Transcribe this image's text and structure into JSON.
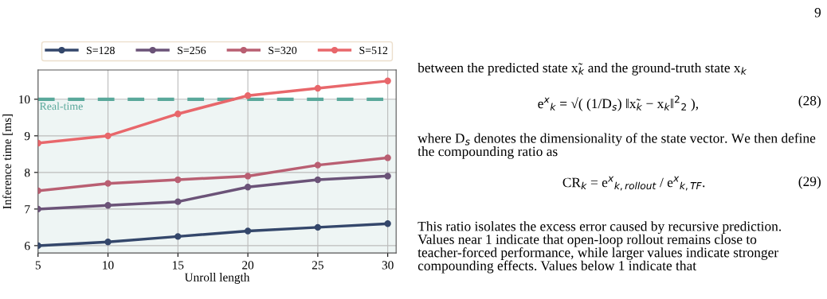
{
  "chart_data": {
    "type": "line",
    "xlabel": "Unroll length",
    "ylabel": "Inference time [ms]",
    "x": [
      5,
      10,
      15,
      20,
      25,
      30
    ],
    "series": [
      {
        "name": "S=128",
        "color": "#34476b",
        "values": [
          6.0,
          6.1,
          6.25,
          6.4,
          6.5,
          6.6
        ]
      },
      {
        "name": "S=256",
        "color": "#6b5378",
        "values": [
          7.0,
          7.1,
          7.2,
          7.6,
          7.8,
          7.9
        ]
      },
      {
        "name": "S=320",
        "color": "#b95f72",
        "values": [
          7.5,
          7.7,
          7.8,
          7.9,
          8.2,
          8.4
        ]
      },
      {
        "name": "S=512",
        "color": "#e8676b",
        "values": [
          8.8,
          9.0,
          9.6,
          10.1,
          10.3,
          10.5
        ]
      }
    ],
    "xlim": [
      5,
      30.6
    ],
    "xticks": [
      5,
      10,
      15,
      20,
      25,
      30
    ],
    "ylim": [
      5.8,
      10.8
    ],
    "yticks": [
      6,
      7,
      8,
      9,
      10
    ],
    "ref_lines": [
      {
        "axis": "y",
        "value": 10,
        "label": "Real-time",
        "color": "#5aa89b",
        "line_style": "dashed"
      }
    ],
    "bands": [
      {
        "axis": "y",
        "from": 5.8,
        "to": 10,
        "color": "#eef5f4"
      }
    ],
    "grid": true,
    "legend": "top",
    "marker": "circle",
    "line_style": "solid",
    "annotations": [
      "9",
      "between the predicted state x̃$_{k}$ and the ground-truth state x$_{k}$",
      "e$^{x}$$_{k}$ = √( (1/D$_{s}$) ‖x̃$_{k}$ − x$_{k}$‖$^{2}$$_{2}$ ),",
      "(28)",
      "where D$_{s}$ denotes the dimensionality of the state vector. We then define the compounding ratio as",
      "CR$_{k}$ = e$^{x}$$_{k,rollout}$ / e$^{x}$$_{k,TF}$.",
      "(29)",
      "This ratio isolates the excess error caused by recursive prediction. Values near 1 indicate that open-loop rollout remains close to teacher-forced performance, while larger values indicate stronger compounding effects. Values below 1 indicate that"
    ]
  }
}
